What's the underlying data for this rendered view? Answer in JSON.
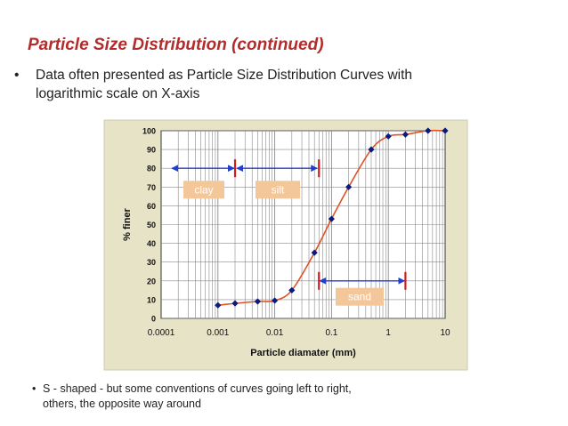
{
  "slide": {
    "title": "Particle Size Distribution (continued)",
    "bullet1_line1": "Data often presented as Particle Size Distribution Curves with",
    "bullet1_line2": "logarithmic scale on X-axis",
    "bullet2_line1": "S - shaped - but some conventions of curves going left to right,",
    "bullet2_line2": "others, the opposite way around",
    "bullet_symbol": "•"
  },
  "colors": {
    "title": "#b22c2c",
    "chart_background": "#e6e3c6",
    "plot_background": "#ffffff",
    "grid": "#8a8a8a",
    "curve": "#e0522a",
    "markers": "#0b1b7a",
    "arrows": "#1f3fcf",
    "boundary_marks": "#d01c1c",
    "label_box": "#f4c79a",
    "label_text": "#ffffff"
  },
  "chart_data": {
    "type": "scatter",
    "xlabel": "Particle diamater (mm)",
    "ylabel": "% finer",
    "x_scale": "log",
    "xlim": [
      0.0001,
      10
    ],
    "ylim": [
      0,
      100
    ],
    "x_ticks": [
      "0.0001",
      "0.001",
      "0.01",
      "0.1",
      "1",
      "10"
    ],
    "y_ticks": [
      "0",
      "10",
      "20",
      "30",
      "40",
      "50",
      "60",
      "70",
      "80",
      "90",
      "100"
    ],
    "grid": true,
    "series": [
      {
        "x": [
          0.001,
          0.002,
          0.005,
          0.01,
          0.02,
          0.05,
          0.1,
          0.2,
          0.5,
          1,
          2,
          5,
          10
        ],
        "y": [
          7,
          8,
          9,
          9.5,
          15,
          35,
          53,
          70,
          90,
          97,
          98,
          100,
          100
        ]
      }
    ],
    "annotations": [
      {
        "label": "clay",
        "x_range": [
          0.0001,
          0.002
        ],
        "y": 80
      },
      {
        "label": "silt",
        "x_range": [
          0.002,
          0.06
        ],
        "y": 80
      },
      {
        "label": "sand",
        "x_range": [
          0.06,
          2
        ],
        "y": 20
      }
    ]
  }
}
